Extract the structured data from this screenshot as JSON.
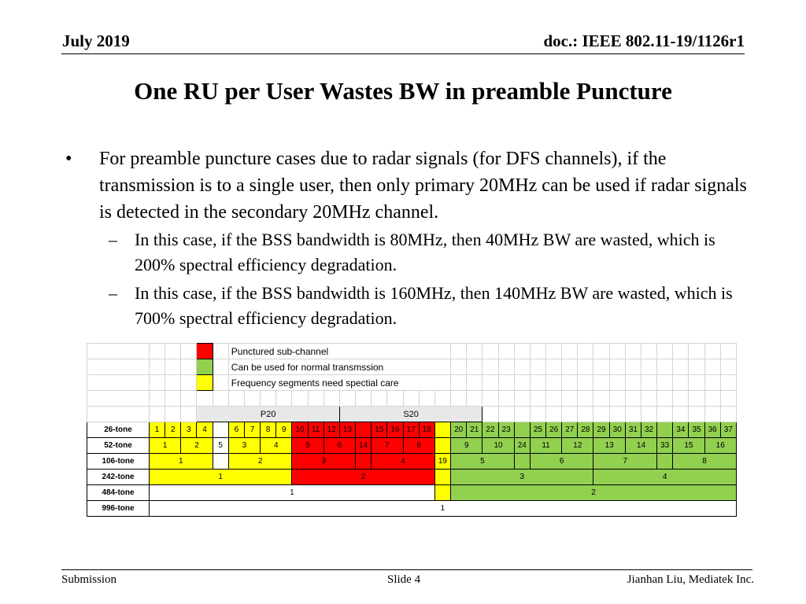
{
  "header": {
    "date": "July 2019",
    "doc": "doc.: IEEE 802.11-19/1126r1"
  },
  "title": "One RU per User Wastes BW in preamble Puncture",
  "bullets": [
    {
      "text": "For preamble puncture cases due to radar signals (for DFS channels), if the transmission is to a single user, then only primary 20MHz can be used if radar signals is detected in the secondary 20MHz channel.",
      "sub": [
        "In this case, if the BSS bandwidth is 80MHz, then 40MHz BW are wasted, which is 200% spectral efficiency degradation.",
        "In this case, if the BSS bandwidth is 160MHz, then 140MHz BW are wasted, which is 700% spectral efficiency degradation."
      ]
    }
  ],
  "legend": [
    {
      "label": "Punctured sub-channel",
      "color": "#ff0000"
    },
    {
      "label": "Can be used for normal transmssion",
      "color": "#92d050"
    },
    {
      "label": "Frequency segments need spectial care",
      "color": "#ffff00"
    }
  ],
  "table": {
    "channels": [
      "P20",
      "S20"
    ],
    "rows": [
      {
        "label": "26-tone",
        "cells": [
          {
            "t": "1",
            "c": "yellow"
          },
          {
            "t": "2",
            "c": "yellow"
          },
          {
            "t": "3",
            "c": "yellow"
          },
          {
            "t": "4",
            "c": "yellow"
          },
          {
            "t": "",
            "c": "white"
          },
          {
            "t": "6",
            "c": "yellow"
          },
          {
            "t": "7",
            "c": "yellow"
          },
          {
            "t": "8",
            "c": "yellow"
          },
          {
            "t": "9",
            "c": "yellow"
          },
          {
            "t": "10",
            "c": "red"
          },
          {
            "t": "11",
            "c": "red"
          },
          {
            "t": "12",
            "c": "red"
          },
          {
            "t": "13",
            "c": "red"
          },
          {
            "t": "",
            "c": "red"
          },
          {
            "t": "15",
            "c": "red"
          },
          {
            "t": "16",
            "c": "red"
          },
          {
            "t": "17",
            "c": "red"
          },
          {
            "t": "18",
            "c": "red"
          },
          {
            "t": "",
            "c": "yellow"
          },
          {
            "t": "20",
            "c": "green"
          },
          {
            "t": "21",
            "c": "green"
          },
          {
            "t": "22",
            "c": "green"
          },
          {
            "t": "23",
            "c": "green"
          },
          {
            "t": "",
            "c": "green"
          },
          {
            "t": "25",
            "c": "green"
          },
          {
            "t": "26",
            "c": "green"
          },
          {
            "t": "27",
            "c": "green"
          },
          {
            "t": "28",
            "c": "green"
          },
          {
            "t": "29",
            "c": "green"
          },
          {
            "t": "30",
            "c": "green"
          },
          {
            "t": "31",
            "c": "green"
          },
          {
            "t": "32",
            "c": "green"
          },
          {
            "t": "",
            "c": "green"
          },
          {
            "t": "34",
            "c": "green"
          },
          {
            "t": "35",
            "c": "green"
          },
          {
            "t": "36",
            "c": "green"
          },
          {
            "t": "37",
            "c": "green"
          }
        ]
      },
      {
        "label": "52-tone",
        "cells": [
          {
            "t": "1",
            "c": "yellow",
            "span": 2
          },
          {
            "t": "2",
            "c": "yellow",
            "span": 2
          },
          {
            "t": "5",
            "c": "white"
          },
          {
            "t": "3",
            "c": "yellow",
            "span": 2
          },
          {
            "t": "4",
            "c": "yellow",
            "span": 2
          },
          {
            "t": "5",
            "c": "red",
            "span": 2
          },
          {
            "t": "6",
            "c": "red",
            "span": 2
          },
          {
            "t": "14",
            "c": "red"
          },
          {
            "t": "7",
            "c": "red",
            "span": 2
          },
          {
            "t": "8",
            "c": "red",
            "span": 2
          },
          {
            "t": "",
            "c": "yellow"
          },
          {
            "t": "9",
            "c": "green",
            "span": 2
          },
          {
            "t": "10",
            "c": "green",
            "span": 2
          },
          {
            "t": "24",
            "c": "green"
          },
          {
            "t": "11",
            "c": "green",
            "span": 2
          },
          {
            "t": "12",
            "c": "green",
            "span": 2
          },
          {
            "t": "13",
            "c": "green",
            "span": 2
          },
          {
            "t": "14",
            "c": "green",
            "span": 2
          },
          {
            "t": "33",
            "c": "green"
          },
          {
            "t": "15",
            "c": "green",
            "span": 2
          },
          {
            "t": "16",
            "c": "green",
            "span": 2
          }
        ]
      },
      {
        "label": "106-tone",
        "cells": [
          {
            "t": "1",
            "c": "yellow",
            "span": 4
          },
          {
            "t": "",
            "c": "white"
          },
          {
            "t": "2",
            "c": "yellow",
            "span": 4
          },
          {
            "t": "3",
            "c": "red",
            "span": 4
          },
          {
            "t": "",
            "c": "red"
          },
          {
            "t": "4",
            "c": "red",
            "span": 4
          },
          {
            "t": "19",
            "c": "yellow"
          },
          {
            "t": "5",
            "c": "green",
            "span": 4
          },
          {
            "t": "",
            "c": "green"
          },
          {
            "t": "6",
            "c": "green",
            "span": 4
          },
          {
            "t": "7",
            "c": "green",
            "span": 4
          },
          {
            "t": "",
            "c": "green"
          },
          {
            "t": "8",
            "c": "green",
            "span": 4
          }
        ]
      },
      {
        "label": "242-tone",
        "cells": [
          {
            "t": "1",
            "c": "yellow",
            "span": 9
          },
          {
            "t": "2",
            "c": "red",
            "span": 9
          },
          {
            "t": "",
            "c": "yellow"
          },
          {
            "t": "3",
            "c": "green",
            "span": 9
          },
          {
            "t": "4",
            "c": "green",
            "span": 9
          }
        ]
      },
      {
        "label": "484-tone",
        "cells": [
          {
            "t": "1",
            "c": "white",
            "span": 18
          },
          {
            "t": "",
            "c": "yellow"
          },
          {
            "t": "2",
            "c": "green",
            "span": 18
          }
        ]
      },
      {
        "label": "996-tone",
        "cells": [
          {
            "t": "1",
            "c": "white",
            "span": 37
          }
        ]
      }
    ]
  },
  "footer": {
    "left": "Submission",
    "center": "Slide 4",
    "right": "Jianhan Liu, Mediatek Inc."
  }
}
